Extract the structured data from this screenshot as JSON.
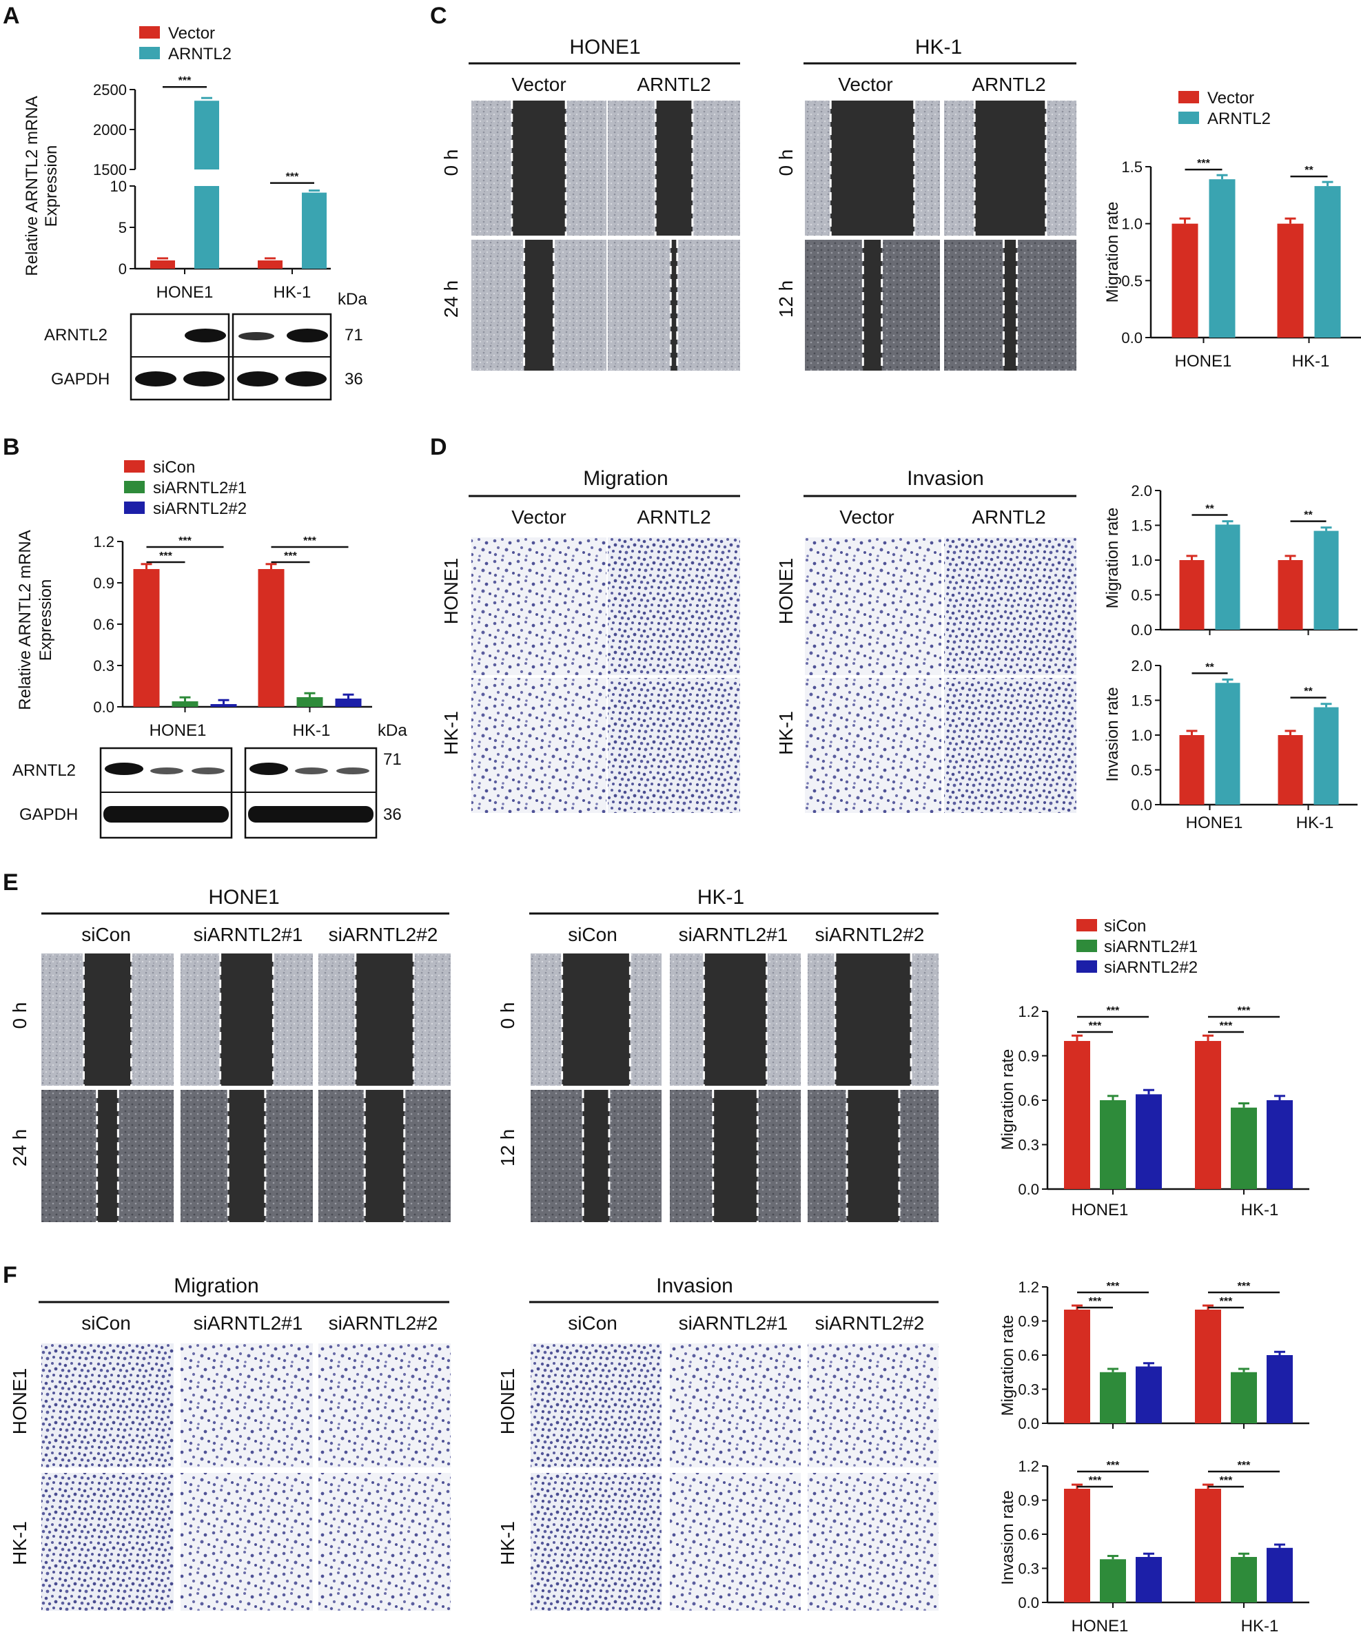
{
  "colors": {
    "red": "#D62D22",
    "teal": "#3AA4B1",
    "green": "#2E8B3A",
    "blue": "#1C1FA8",
    "lane_dark": "#222222",
    "wound": "#2e2e2e",
    "field": "#b9bcc4",
    "dash": "#ffffff",
    "cellbg": "#f1f2f7",
    "cell": "#5b5e9e"
  },
  "panels": {
    "A": {
      "label": "A",
      "ylabel_lines": [
        "Relative ARNTL2 mRNA",
        "Expression"
      ],
      "legend": [
        "Vector",
        "ARNTL2"
      ],
      "categories": [
        "HONE1",
        "HK-1"
      ],
      "wb_rows": [
        "ARNTL2",
        "GAPDH"
      ],
      "kda_label": "kDa",
      "kda": [
        "71",
        "36"
      ],
      "sig": [
        "***",
        "***"
      ]
    },
    "B": {
      "label": "B",
      "ylabel_lines": [
        "Relative ARNTL2 mRNA",
        "Expression"
      ],
      "legend": [
        "siCon",
        "siARNTL2#1",
        "siARNTL2#2"
      ],
      "categories": [
        "HONE1",
        "HK-1"
      ],
      "wb_rows": [
        "ARNTL2",
        "GAPDH"
      ],
      "kda_label": "kDa",
      "kda": [
        "71",
        "36"
      ],
      "sig": [
        "***",
        "***",
        "***",
        "***"
      ]
    },
    "C": {
      "label": "C",
      "groups": [
        "HONE1",
        "HK-1"
      ],
      "cols": [
        "Vector",
        "ARNTL2"
      ],
      "rows_left": [
        "0 h",
        "24 h"
      ],
      "rows_right": [
        "0 h",
        "12 h"
      ],
      "legend": [
        "Vector",
        "ARNTL2"
      ],
      "ylabel": "Migration rate",
      "categories": [
        "HONE1",
        "HK-1"
      ],
      "sig": [
        "***",
        "**"
      ]
    },
    "D": {
      "label": "D",
      "groups": [
        "Migration",
        "Invasion"
      ],
      "cols": [
        "Vector",
        "ARNTL2"
      ],
      "rows": [
        "HONE1",
        "HK-1"
      ],
      "ylabel_top": "Migration rate",
      "ylabel_bottom": "Invasion rate",
      "categories": [
        "HONE1",
        "HK-1"
      ],
      "sig": [
        "**",
        "**",
        "**",
        "**"
      ]
    },
    "E": {
      "label": "E",
      "groups": [
        "HONE1",
        "HK-1"
      ],
      "cols": [
        "siCon",
        "siARNTL2#1",
        "siARNTL2#2"
      ],
      "rows_left": [
        "0 h",
        "24 h"
      ],
      "rows_right": [
        "0 h",
        "12 h"
      ],
      "legend": [
        "siCon",
        "siARNTL2#1",
        "siARNTL2#2"
      ],
      "ylabel": "Migration rate",
      "categories": [
        "HONE1",
        "HK-1"
      ],
      "sig": [
        "***",
        "***",
        "***",
        "***"
      ]
    },
    "F": {
      "label": "F",
      "groups": [
        "Migration",
        "Invasion"
      ],
      "cols": [
        "siCon",
        "siARNTL2#1",
        "siARNTL2#2"
      ],
      "rows": [
        "HONE1",
        "HK-1"
      ],
      "ylabel_top": "Migration rate",
      "ylabel_bottom": "Invasion rate",
      "categories": [
        "HONE1",
        "HK-1"
      ],
      "sig": [
        "***",
        "***",
        "***",
        "***"
      ]
    }
  },
  "chart_data": [
    {
      "id": "A",
      "type": "bar",
      "categories": [
        "HONE1",
        "HK-1"
      ],
      "series": [
        {
          "name": "Vector",
          "values": [
            1,
            1
          ]
        },
        {
          "name": "ARNTL2",
          "values": [
            2360,
            9.2
          ]
        }
      ],
      "ylim_lower": [
        0,
        10
      ],
      "ylim_upper": [
        1500,
        2500
      ],
      "yticks_lower": [
        0,
        5,
        10
      ],
      "yticks_upper": [
        1500,
        2000,
        2500
      ],
      "broken_axis": true
    },
    {
      "id": "B",
      "type": "bar",
      "categories": [
        "HONE1",
        "HK-1"
      ],
      "series": [
        {
          "name": "siCon",
          "values": [
            1.0,
            1.0
          ]
        },
        {
          "name": "siARNTL2#1",
          "values": [
            0.04,
            0.07
          ]
        },
        {
          "name": "siARNTL2#2",
          "values": [
            0.02,
            0.06
          ]
        }
      ],
      "ylim": [
        0,
        1.2
      ],
      "yticks": [
        0.0,
        0.3,
        0.6,
        0.9,
        1.2
      ]
    },
    {
      "id": "C",
      "type": "bar",
      "categories": [
        "HONE1",
        "HK-1"
      ],
      "series": [
        {
          "name": "Vector",
          "values": [
            1.0,
            1.0
          ]
        },
        {
          "name": "ARNTL2",
          "values": [
            1.39,
            1.33
          ]
        }
      ],
      "ylim": [
        0,
        1.5
      ],
      "yticks": [
        0.0,
        0.5,
        1.0,
        1.5
      ]
    },
    {
      "id": "D-migration",
      "type": "bar",
      "categories": [
        "HONE1",
        "HK-1"
      ],
      "series": [
        {
          "name": "Vector",
          "values": [
            1.0,
            1.0
          ]
        },
        {
          "name": "ARNTL2",
          "values": [
            1.51,
            1.42
          ]
        }
      ],
      "ylim": [
        0,
        2.0
      ],
      "yticks": [
        0.0,
        0.5,
        1.0,
        1.5,
        2.0
      ]
    },
    {
      "id": "D-invasion",
      "type": "bar",
      "categories": [
        "HONE1",
        "HK-1"
      ],
      "series": [
        {
          "name": "Vector",
          "values": [
            1.0,
            1.0
          ]
        },
        {
          "name": "ARNTL2",
          "values": [
            1.75,
            1.4
          ]
        }
      ],
      "ylim": [
        0,
        2.0
      ],
      "yticks": [
        0.0,
        0.5,
        1.0,
        1.5,
        2.0
      ]
    },
    {
      "id": "E",
      "type": "bar",
      "categories": [
        "HONE1",
        "HK-1"
      ],
      "series": [
        {
          "name": "siCon",
          "values": [
            1.0,
            1.0
          ]
        },
        {
          "name": "siARNTL2#1",
          "values": [
            0.6,
            0.55
          ]
        },
        {
          "name": "siARNTL2#2",
          "values": [
            0.64,
            0.6
          ]
        }
      ],
      "ylim": [
        0,
        1.2
      ],
      "yticks": [
        0.0,
        0.3,
        0.6,
        0.9,
        1.2
      ]
    },
    {
      "id": "F-migration",
      "type": "bar",
      "categories": [
        "HONE1",
        "HK-1"
      ],
      "series": [
        {
          "name": "siCon",
          "values": [
            1.0,
            1.0
          ]
        },
        {
          "name": "siARNTL2#1",
          "values": [
            0.45,
            0.45
          ]
        },
        {
          "name": "siARNTL2#2",
          "values": [
            0.5,
            0.6
          ]
        }
      ],
      "ylim": [
        0,
        1.2
      ],
      "yticks": [
        0.0,
        0.3,
        0.6,
        0.9,
        1.2
      ]
    },
    {
      "id": "F-invasion",
      "type": "bar",
      "categories": [
        "HONE1",
        "HK-1"
      ],
      "series": [
        {
          "name": "siCon",
          "values": [
            1.0,
            1.0
          ]
        },
        {
          "name": "siARNTL2#1",
          "values": [
            0.38,
            0.4
          ]
        },
        {
          "name": "siARNTL2#2",
          "values": [
            0.4,
            0.48
          ]
        }
      ],
      "ylim": [
        0,
        1.2
      ],
      "yticks": [
        0.0,
        0.3,
        0.6,
        0.9,
        1.2
      ]
    }
  ]
}
